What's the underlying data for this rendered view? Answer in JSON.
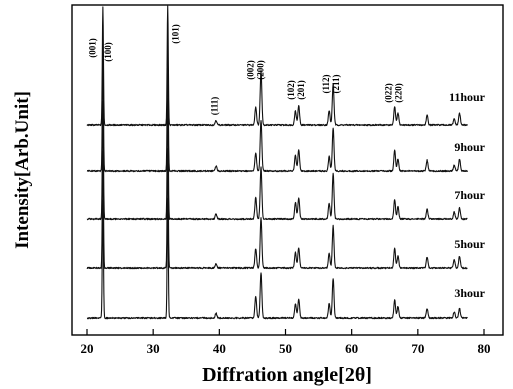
{
  "chart_data": {
    "type": "line",
    "title": "",
    "xlabel": "Diffration angle[2θ]",
    "ylabel": "Intensity[Arb.Unit]",
    "xlim": [
      20,
      80
    ],
    "x_ticks": [
      "20",
      "30",
      "40",
      "50",
      "60",
      "70",
      "80"
    ],
    "y_ticks_shown": false,
    "grid": false,
    "legend": "none",
    "stacked_offset": true,
    "series": [
      {
        "name": "11hour",
        "peaks": [
          {
            "x": 22.4,
            "h": 0.98
          },
          {
            "x": 32.2,
            "h": 1.0
          },
          {
            "x": 39.5,
            "h": 0.04
          },
          {
            "x": 45.5,
            "h": 0.15
          },
          {
            "x": 46.3,
            "h": 0.45
          },
          {
            "x": 51.5,
            "h": 0.12
          },
          {
            "x": 52.0,
            "h": 0.16
          },
          {
            "x": 56.6,
            "h": 0.12
          },
          {
            "x": 57.2,
            "h": 0.34
          },
          {
            "x": 66.5,
            "h": 0.15
          },
          {
            "x": 67.0,
            "h": 0.1
          },
          {
            "x": 71.4,
            "h": 0.08
          },
          {
            "x": 75.5,
            "h": 0.05
          },
          {
            "x": 76.3,
            "h": 0.1
          }
        ]
      },
      {
        "name": "9hour",
        "peaks": [
          {
            "x": 22.4,
            "h": 0.98
          },
          {
            "x": 32.2,
            "h": 1.0
          },
          {
            "x": 39.5,
            "h": 0.04
          },
          {
            "x": 45.5,
            "h": 0.15
          },
          {
            "x": 46.3,
            "h": 0.42
          },
          {
            "x": 51.5,
            "h": 0.13
          },
          {
            "x": 52.0,
            "h": 0.18
          },
          {
            "x": 56.6,
            "h": 0.12
          },
          {
            "x": 57.2,
            "h": 0.36
          },
          {
            "x": 66.5,
            "h": 0.17
          },
          {
            "x": 67.0,
            "h": 0.1
          },
          {
            "x": 71.4,
            "h": 0.09
          },
          {
            "x": 75.5,
            "h": 0.05
          },
          {
            "x": 76.3,
            "h": 0.1
          }
        ]
      },
      {
        "name": "7hour",
        "peaks": [
          {
            "x": 22.4,
            "h": 0.98
          },
          {
            "x": 32.2,
            "h": 1.0
          },
          {
            "x": 39.5,
            "h": 0.04
          },
          {
            "x": 45.5,
            "h": 0.18
          },
          {
            "x": 46.3,
            "h": 0.43
          },
          {
            "x": 51.5,
            "h": 0.14
          },
          {
            "x": 52.0,
            "h": 0.18
          },
          {
            "x": 56.6,
            "h": 0.13
          },
          {
            "x": 57.2,
            "h": 0.38
          },
          {
            "x": 66.5,
            "h": 0.16
          },
          {
            "x": 67.0,
            "h": 0.1
          },
          {
            "x": 71.4,
            "h": 0.08
          },
          {
            "x": 75.5,
            "h": 0.06
          },
          {
            "x": 76.3,
            "h": 0.09
          }
        ]
      },
      {
        "name": "5hour",
        "peaks": [
          {
            "x": 22.4,
            "h": 0.98
          },
          {
            "x": 32.2,
            "h": 1.0
          },
          {
            "x": 39.5,
            "h": 0.04
          },
          {
            "x": 45.5,
            "h": 0.16
          },
          {
            "x": 46.3,
            "h": 0.42
          },
          {
            "x": 51.5,
            "h": 0.13
          },
          {
            "x": 52.0,
            "h": 0.17
          },
          {
            "x": 56.6,
            "h": 0.12
          },
          {
            "x": 57.2,
            "h": 0.35
          },
          {
            "x": 66.5,
            "h": 0.16
          },
          {
            "x": 67.0,
            "h": 0.1
          },
          {
            "x": 71.4,
            "h": 0.09
          },
          {
            "x": 75.5,
            "h": 0.07
          },
          {
            "x": 76.3,
            "h": 0.1
          }
        ]
      },
      {
        "name": "3hour",
        "peaks": [
          {
            "x": 22.4,
            "h": 0.98
          },
          {
            "x": 32.2,
            "h": 1.0
          },
          {
            "x": 39.5,
            "h": 0.04
          },
          {
            "x": 45.5,
            "h": 0.18
          },
          {
            "x": 46.3,
            "h": 0.38
          },
          {
            "x": 51.5,
            "h": 0.12
          },
          {
            "x": 52.0,
            "h": 0.16
          },
          {
            "x": 56.6,
            "h": 0.12
          },
          {
            "x": 57.2,
            "h": 0.33
          },
          {
            "x": 66.5,
            "h": 0.15
          },
          {
            "x": 67.0,
            "h": 0.1
          },
          {
            "x": 71.4,
            "h": 0.08
          },
          {
            "x": 75.5,
            "h": 0.05
          },
          {
            "x": 76.3,
            "h": 0.08
          }
        ]
      }
    ],
    "annotations": [
      {
        "text": "(001)",
        "x": 21.3
      },
      {
        "text": "(100)",
        "x": 23.6
      },
      {
        "text": "(101)",
        "x": 33.8
      },
      {
        "text": "(111)",
        "x": 39.7
      },
      {
        "text": "(002)",
        "x": 45.2
      },
      {
        "text": "(200)",
        "x": 46.7
      },
      {
        "text": "(102)",
        "x": 51.3
      },
      {
        "text": "(201)",
        "x": 52.8
      },
      {
        "text": "(112)",
        "x": 56.6
      },
      {
        "text": "(211)",
        "x": 58.1
      },
      {
        "text": "(022)",
        "x": 66.0
      },
      {
        "text": "(220)",
        "x": 67.5
      }
    ]
  }
}
